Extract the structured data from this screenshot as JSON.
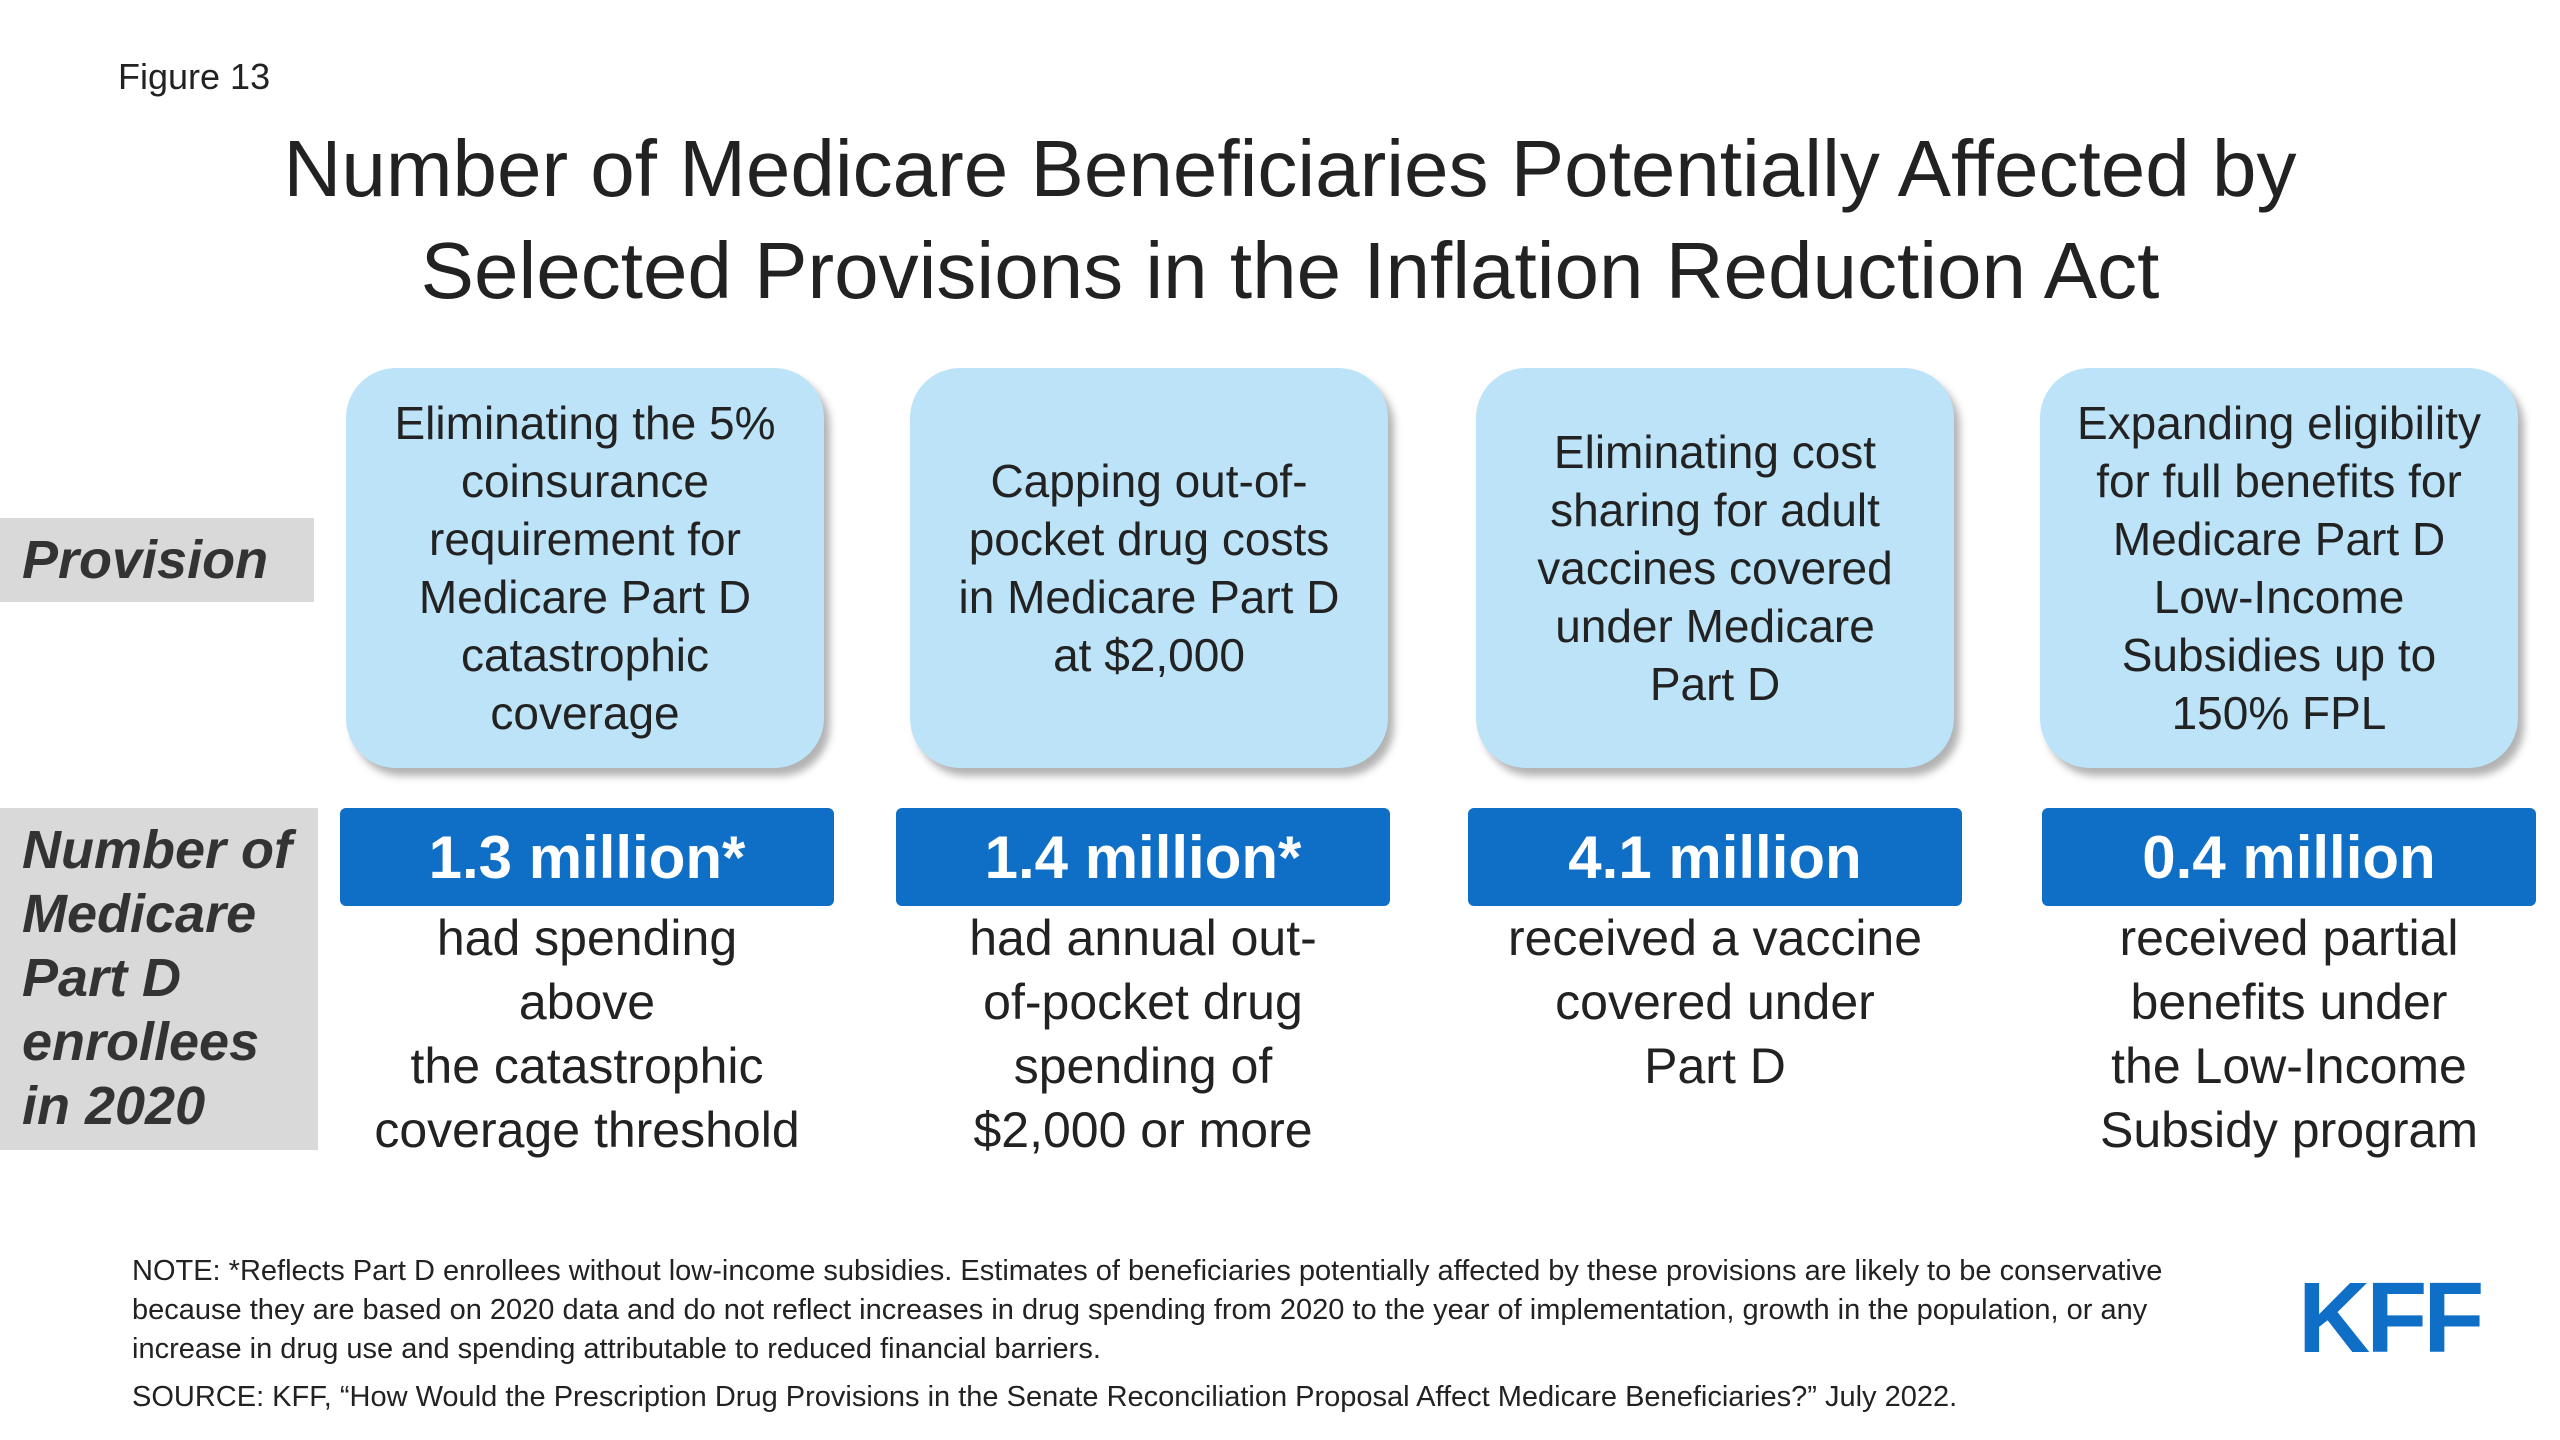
{
  "figure_label": "Figure 13",
  "title_line1": "Number of Medicare Beneficiaries Potentially Affected by",
  "title_line2": "Selected Provisions in the Inflation Reduction Act",
  "row_labels": {
    "provision": "Provision",
    "enrollees": [
      "Number of",
      "Medicare",
      "Part D",
      "enrollees",
      "in 2020"
    ]
  },
  "provisions": [
    {
      "card": [
        "Eliminating the 5%",
        "coinsurance",
        "requirement for",
        "Medicare Part D",
        "catastrophic",
        "coverage"
      ],
      "stat": "1.3 million*",
      "desc": [
        "had spending",
        "above",
        "the catastrophic",
        "coverage threshold"
      ]
    },
    {
      "card": [
        "Capping out-of-",
        "pocket drug costs",
        "in Medicare Part D",
        "at $2,000"
      ],
      "stat": "1.4 million*",
      "desc": [
        "had annual out-",
        "of-pocket drug",
        "spending of",
        "$2,000 or more"
      ]
    },
    {
      "card": [
        "Eliminating cost",
        "sharing for adult",
        "vaccines covered",
        "under Medicare",
        "Part D"
      ],
      "stat": "4.1 million",
      "desc": [
        "received a vaccine",
        "covered under",
        "Part D"
      ]
    },
    {
      "card": [
        "Expanding eligibility",
        "for full benefits for",
        "Medicare Part D",
        "Low-Income",
        "Subsidies up to",
        "150% FPL"
      ],
      "stat": "0.4 million",
      "desc": [
        "received partial",
        "benefits under",
        "the Low-Income",
        "Subsidy program"
      ]
    }
  ],
  "note": "NOTE: *Reflects Part D enrollees without low-income subsidies. Estimates of beneficiaries potentially affected by these provisions are likely to be conservative because they are based on 2020 data and do not reflect increases in drug spending from 2020 to the year of implementation, growth in the population, or any increase in drug use and spending attributable to reduced financial barriers.",
  "source": "SOURCE: KFF, “How Would the Prescription Drug Provisions in the Senate Reconciliation Proposal Affect Medicare Beneficiaries?” July 2022.",
  "logo_text": "KFF",
  "colors": {
    "card_fill": "#bde3f8",
    "stat_bar": "#0f6fc6",
    "row_label_bg": "#d9d9d9",
    "logo": "#0f6fc6"
  }
}
